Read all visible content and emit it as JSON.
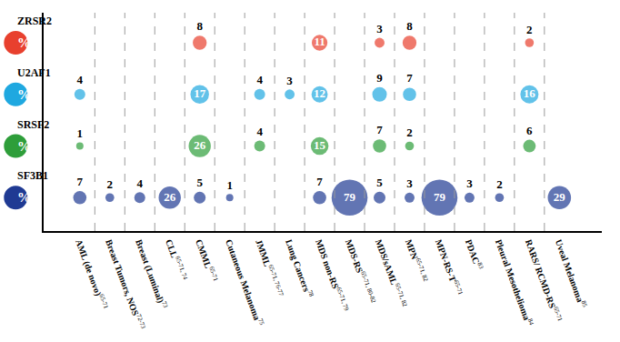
{
  "chart_data": {
    "type": "bubble",
    "categories": [
      "AML (de novo)",
      "Breast Tumors, NOS",
      "Breast (Luminal)",
      "CLL",
      "CMML",
      "Cutaneous Melanoma",
      "JMML",
      "Lung Cancers",
      "MDS non-RS",
      "MDS-RS",
      "MDS/sAML",
      "MPN",
      "MPN-RS-T",
      "PDAC",
      "Pleural Mesothelioma",
      "RARS/ RCMD-RS",
      "Uveal Melanoma"
    ],
    "category_superscripts": [
      "65-71",
      "72-73",
      "73",
      "65-71, 74",
      "65-71",
      "75",
      "65-71, 76-77",
      "78",
      "65-71, 79",
      "65-71, 80-82",
      "65-71, 82",
      "65-71, 82",
      "65-71",
      "83",
      "84",
      "65-71",
      "85"
    ],
    "row_symbol": "%",
    "series": [
      {
        "name": "ZRSR2",
        "color": "#e8402e",
        "values": [
          null,
          null,
          null,
          null,
          8,
          null,
          null,
          null,
          11,
          null,
          3,
          8,
          null,
          null,
          null,
          2,
          null
        ]
      },
      {
        "name": "U2AF1",
        "color": "#1fa8e0",
        "values": [
          4,
          null,
          null,
          null,
          17,
          null,
          4,
          3,
          12,
          null,
          9,
          7,
          null,
          null,
          null,
          16,
          null
        ]
      },
      {
        "name": "SRSF2",
        "color": "#2e9e3a",
        "values": [
          1,
          null,
          null,
          null,
          26,
          null,
          4,
          null,
          15,
          null,
          7,
          2,
          null,
          null,
          null,
          6,
          null
        ]
      },
      {
        "name": "SF3B1",
        "color": "#1f3a93",
        "values": [
          7,
          2,
          4,
          26,
          5,
          1,
          null,
          null,
          7,
          79,
          5,
          3,
          79,
          3,
          2,
          null,
          29
        ]
      }
    ],
    "data_labels": true,
    "tick_labels": "x",
    "grid": false,
    "marker": "circle"
  }
}
